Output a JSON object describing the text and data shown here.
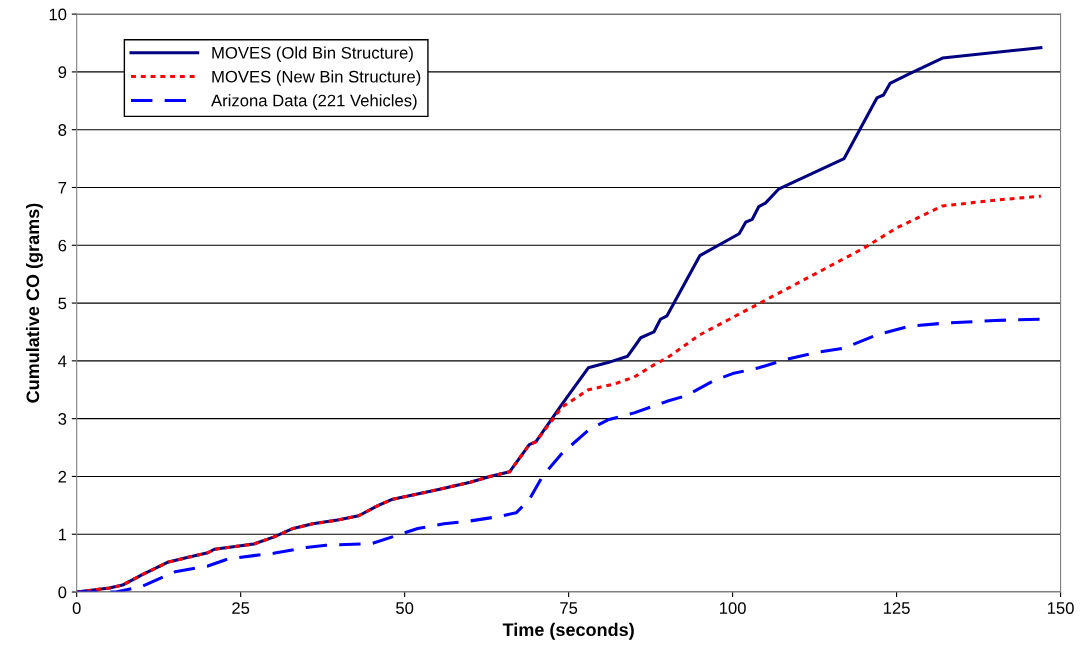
{
  "chart_data": {
    "type": "line",
    "xlabel": "Time (seconds)",
    "ylabel": "Cumulative CO (grams)",
    "xlim": [
      0,
      150
    ],
    "xticks": [
      0,
      25,
      50,
      75,
      100,
      125,
      150
    ],
    "ylim": [
      0,
      10
    ],
    "yticks": [
      0,
      1,
      2,
      3,
      4,
      5,
      6,
      7,
      8,
      9,
      10
    ],
    "grid": "y",
    "legend": "top left",
    "marker": "none",
    "series": [
      {
        "name": "MOVES (Old Bin Structure)",
        "color": "#000080",
        "line_style": "solid",
        "x": [
          0,
          5,
          7,
          10,
          14,
          17,
          20,
          21,
          25,
          27,
          30,
          33,
          36,
          40,
          43,
          46,
          48,
          55,
          60,
          63,
          66,
          69,
          70,
          74,
          78,
          81,
          84,
          86,
          88,
          89,
          90,
          95,
          101,
          102,
          103,
          104,
          105,
          107,
          117,
          122,
          123,
          124,
          127,
          132,
          147
        ],
        "values": [
          0,
          0.07,
          0.12,
          0.3,
          0.52,
          0.6,
          0.68,
          0.74,
          0.8,
          0.83,
          0.95,
          1.1,
          1.18,
          1.25,
          1.32,
          1.5,
          1.6,
          1.77,
          1.9,
          2.0,
          2.08,
          2.55,
          2.6,
          3.25,
          3.88,
          3.97,
          4.08,
          4.4,
          4.5,
          4.72,
          4.78,
          5.82,
          6.2,
          6.4,
          6.45,
          6.67,
          6.73,
          6.97,
          7.5,
          8.55,
          8.6,
          8.8,
          8.97,
          9.24,
          9.42
        ]
      },
      {
        "name": "MOVES (New Bin Structure)",
        "color": "#ff0000",
        "line_style": "dotted",
        "x": [
          0,
          5,
          7,
          10,
          14,
          17,
          20,
          21,
          25,
          27,
          30,
          33,
          36,
          40,
          43,
          46,
          48,
          55,
          60,
          63,
          66,
          69,
          70,
          74,
          78,
          82,
          85,
          88,
          90,
          95,
          100,
          105,
          110,
          115,
          120,
          125,
          132,
          140,
          147
        ],
        "values": [
          0,
          0.07,
          0.12,
          0.3,
          0.52,
          0.6,
          0.68,
          0.74,
          0.8,
          0.83,
          0.95,
          1.1,
          1.18,
          1.25,
          1.32,
          1.5,
          1.6,
          1.77,
          1.9,
          2.0,
          2.08,
          2.55,
          2.6,
          3.2,
          3.5,
          3.6,
          3.72,
          3.93,
          4.05,
          4.45,
          4.75,
          5.05,
          5.35,
          5.65,
          5.95,
          6.3,
          6.68,
          6.78,
          6.85
        ]
      },
      {
        "name": "Arizona Data (221 Vehicles)",
        "color": "#0000ff",
        "line_style": "dashed",
        "x": [
          0,
          6,
          10,
          15,
          20,
          23,
          27,
          30,
          35,
          38,
          45,
          48,
          52,
          56,
          60,
          64,
          67,
          69,
          71,
          74,
          78,
          81,
          85,
          90,
          93,
          97,
          100,
          104,
          108,
          113,
          117,
          122,
          127,
          132,
          140,
          147
        ],
        "values": [
          0,
          0,
          0.1,
          0.35,
          0.45,
          0.57,
          0.63,
          0.67,
          0.77,
          0.81,
          0.84,
          0.95,
          1.1,
          1.18,
          1.23,
          1.3,
          1.37,
          1.6,
          2.0,
          2.4,
          2.8,
          2.98,
          3.1,
          3.3,
          3.4,
          3.65,
          3.78,
          3.88,
          4.02,
          4.15,
          4.22,
          4.45,
          4.6,
          4.65,
          4.7,
          4.72
        ]
      }
    ]
  }
}
